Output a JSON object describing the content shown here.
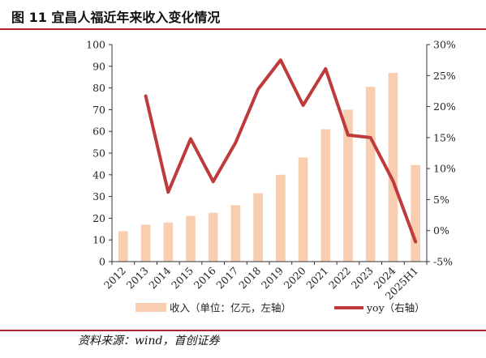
{
  "title": "图 11  宜昌人福近年来收入变化情况",
  "source": "资料来源：wind，首创证券",
  "colors": {
    "bar": "#f8cdb0",
    "line": "#bf3b3b",
    "accent": "#b2242b"
  },
  "chart_data": {
    "type": "bar",
    "categories": [
      "2012",
      "2013",
      "2014",
      "2015",
      "2016",
      "2017",
      "2018",
      "2019",
      "2020",
      "2021",
      "2022",
      "2023",
      "2024",
      "2025H1"
    ],
    "series": [
      {
        "name": "收入（单位：亿元，左轴）",
        "type": "bar",
        "axis": "left",
        "values": [
          14,
          17,
          18,
          21,
          22.5,
          26,
          31.5,
          40,
          48,
          61,
          70,
          80.5,
          87,
          44.5
        ]
      },
      {
        "name": "yoy（右轴）",
        "type": "line",
        "axis": "right",
        "values": [
          null,
          21.7,
          6.2,
          14.8,
          7.9,
          14.2,
          22.8,
          27.5,
          20.2,
          26.1,
          15.4,
          15.0,
          8.0,
          -1.8
        ]
      }
    ],
    "left_axis": {
      "min": 0,
      "max": 100,
      "step": 10,
      "tick_labels": [
        "0",
        "10",
        "20",
        "30",
        "40",
        "50",
        "60",
        "70",
        "80",
        "90",
        "100"
      ]
    },
    "right_axis": {
      "min": -5,
      "max": 30,
      "step": 5,
      "tick_labels": [
        "-5%",
        "0%",
        "5%",
        "10%",
        "15%",
        "20%",
        "25%",
        "30%"
      ]
    },
    "grid": false,
    "legend_position": "bottom"
  }
}
